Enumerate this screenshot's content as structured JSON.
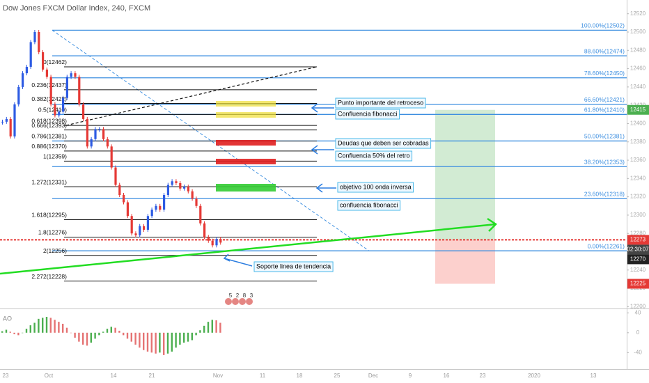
{
  "chart_data": {
    "type": "candlestick",
    "title": "Dow Jones FXCM Dollar Index, 240, FXCM",
    "close": [
      12402,
      12405,
      12386,
      12421,
      12440,
      12455,
      12462,
      12489,
      12500,
      12478,
      12459,
      12451,
      12421,
      12409,
      12413,
      12428,
      12451,
      12455,
      12451,
      12421,
      12405,
      12375,
      12383,
      12394,
      12394,
      12383,
      12375,
      12352,
      12333,
      12322,
      12314,
      12299,
      12280,
      12278,
      12288,
      12284,
      12299,
      12306,
      12310,
      12306,
      12322,
      12333,
      12337,
      12335,
      12329,
      12331,
      12326,
      12318,
      12310,
      12291,
      12276,
      12272,
      12267,
      12274,
      12270
    ],
    "up_color": "#2d5be3",
    "down_color": "#e53935",
    "ylim": [
      12198,
      12535
    ],
    "yticks": [
      12520,
      12500,
      12480,
      12460,
      12440,
      12420,
      12400,
      12380,
      12360,
      12340,
      12320,
      12300,
      12280,
      12260,
      12240,
      12220,
      12200
    ],
    "fib_right": [
      {
        "value": 12502,
        "label": "100.00%(12502)"
      },
      {
        "value": 12474,
        "label": "88.60%(12474)"
      },
      {
        "value": 12450,
        "label": "78.60%(12450)"
      },
      {
        "value": 12421,
        "label": "66.60%(12421)"
      },
      {
        "value": 12410,
        "label": "61.80%(12410)"
      },
      {
        "value": 12381,
        "label": "50.00%(12381)"
      },
      {
        "value": 12353,
        "label": "38.20%(12353)"
      },
      {
        "value": 12318,
        "label": "23.60%(12318)"
      },
      {
        "value": 12261,
        "label": "0.00%(12261)"
      }
    ],
    "fib_left": [
      {
        "value": 12462,
        "label": "0(12462)"
      },
      {
        "value": 12437,
        "label": "0.236(12437)"
      },
      {
        "value": 12422,
        "label": "0.382(12422)"
      },
      {
        "value": 12410,
        "label": "0.5(12410)"
      },
      {
        "value": 12398,
        "label": "0.618(12398)"
      },
      {
        "value": 12393,
        "label": "0.666(12393)"
      },
      {
        "value": 12381,
        "label": "0.786(12381)"
      },
      {
        "value": 12370,
        "label": "0.886(12370)"
      },
      {
        "value": 12359,
        "label": "1(12359)"
      },
      {
        "value": 12331,
        "label": "1.272(12331)"
      },
      {
        "value": 12295,
        "label": "1.618(12295)"
      },
      {
        "value": 12276,
        "label": "1.8(12276)"
      },
      {
        "value": 12256,
        "label": "2(12256)"
      },
      {
        "value": 12228,
        "label": "2.272(12228)"
      }
    ],
    "fib_right_color": "#3d8fe0",
    "fib_left_color": "#111111",
    "price_badges": [
      12415,
      12273,
      12225
    ],
    "badge_colors": [
      "#4caf50",
      "#e53935",
      "#e53935"
    ],
    "countdown": "02:30:07",
    "last_price": 12270,
    "annotations": [
      "Punto importante del retroceso",
      "Confluencia fibonacci",
      "Deudas que deben ser cobradas",
      "Confluencia 50% del retro",
      "objetivo 100 onda inversa",
      "confluencia fibonacci",
      "Soporte linea de tendencia"
    ],
    "x_labels": [
      "23",
      "Oct",
      "14",
      "21",
      "Nov",
      "11",
      "18",
      "25",
      "Dec",
      "9",
      "16",
      "23",
      "2020",
      "13"
    ],
    "event_counts": [
      5,
      2,
      8,
      3
    ],
    "indicator": {
      "name": "AO",
      "values": [
        3,
        6,
        2,
        -3,
        -5,
        0,
        8,
        15,
        20,
        28,
        30,
        32,
        30,
        26,
        22,
        18,
        10,
        0,
        -10,
        -18,
        -24,
        -26,
        -20,
        -12,
        -5,
        2,
        8,
        12,
        10,
        4,
        -5,
        -12,
        -18,
        -24,
        -30,
        -35,
        -38,
        -40,
        -42,
        -40,
        -45,
        -42,
        -38,
        -30,
        -24,
        -20,
        -18,
        -15,
        -5,
        5,
        14,
        22,
        26,
        25,
        20
      ],
      "ylim": [
        -69,
        46
      ],
      "yticks": [
        40,
        0,
        -40
      ],
      "rising_color": "#4caf50",
      "falling_color": "#e57373"
    }
  }
}
